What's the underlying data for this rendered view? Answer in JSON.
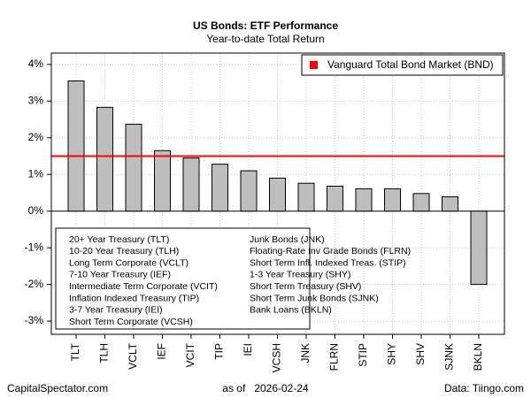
{
  "chart_data": {
    "type": "bar",
    "title": "US Bonds: ETF Performance",
    "subtitle": "Year-to-date Total Return",
    "categories": [
      "TLT",
      "TLH",
      "VCLT",
      "IEF",
      "VCIT",
      "TIP",
      "IEI",
      "VCSH",
      "JNK",
      "FLRN",
      "STIP",
      "SHY",
      "SHV",
      "SJNK",
      "BKLN"
    ],
    "values": [
      3.55,
      2.83,
      2.37,
      1.65,
      1.45,
      1.28,
      1.1,
      0.9,
      0.76,
      0.68,
      0.61,
      0.61,
      0.48,
      0.39,
      -2.0
    ],
    "color": "#bebebe",
    "ylim": [
      -3.36,
      4.31
    ],
    "yticks": [
      {
        "value": -3,
        "label": "-3%"
      },
      {
        "value": -2,
        "label": "-2%"
      },
      {
        "value": -1,
        "label": "-1%"
      },
      {
        "value": 0,
        "label": "0%"
      },
      {
        "value": 1,
        "label": "1%"
      },
      {
        "value": 2,
        "label": "2%"
      },
      {
        "value": 3,
        "label": "3%"
      },
      {
        "value": 4,
        "label": "4%"
      }
    ],
    "grid": true,
    "reference_line": {
      "name": "Vanguard Total Bond Market (BND)",
      "value": 1.5,
      "color": "#ff0000"
    },
    "descriptions": [
      "20+ Year Treasury (TLT)",
      "10-20 Year Treasury (TLH)",
      "Long Term Corporate (VCLT)",
      "7-10 Year Treasury (IEF)",
      "Intermediate Term Corporate (VCIT)",
      "Inflation Indexed Treasury (TIP)",
      "3-7 Year Treasury (IEI)",
      "Short Term Corporate (VCSH)",
      "Junk Bonds (JNK)",
      "Floating-Rate Inv Grade Bonds (FLRN)",
      "Short Term Infl. Indexed Treas. (STIP)",
      "1-3 Year Treasury (SHY)",
      "Short Term Treasury (SHV)",
      "Short Term Junk Bonds (SJNK)",
      "Bank Loans (BKLN)"
    ],
    "footer_left": "CapitalSpectator.com",
    "footer_center": "as of   2026-02-24",
    "footer_right": "Data: Tiingo.com"
  }
}
